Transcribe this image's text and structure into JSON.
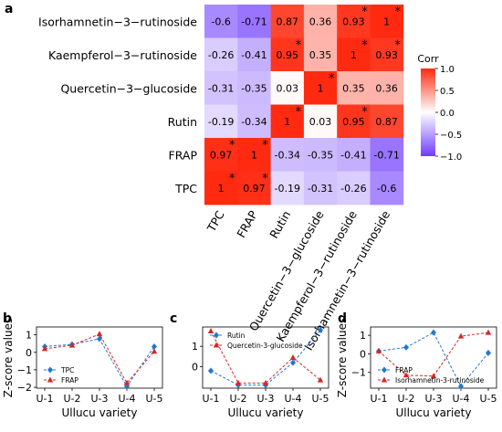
{
  "panel_letters": [
    "a",
    "b",
    "c",
    "d"
  ],
  "chart_data": [
    {
      "type": "heatmap",
      "panel": "a",
      "row_labels": [
        "Isorhamnetin−3−rutinoside",
        "Kaempferol−3−rutinoside",
        "Quercetin−3−glucoside",
        "Rutin",
        "FRAP",
        "TPC"
      ],
      "col_labels": [
        "TPC",
        "FRAP",
        "Rutin",
        "Quercetin−3−glucoside",
        "Kaempferol−3−rutinoside",
        "Isorhamnetin−3−rutinoside"
      ],
      "values": [
        [
          -0.6,
          -0.71,
          0.87,
          0.36,
          0.93,
          1
        ],
        [
          -0.26,
          -0.41,
          0.95,
          0.35,
          1,
          0.93
        ],
        [
          -0.31,
          -0.35,
          0.03,
          1,
          0.35,
          0.36
        ],
        [
          -0.19,
          -0.34,
          1,
          0.03,
          0.95,
          0.87
        ],
        [
          0.97,
          1,
          -0.34,
          -0.35,
          -0.41,
          -0.71
        ],
        [
          1,
          0.97,
          -0.19,
          -0.31,
          -0.26,
          -0.6
        ]
      ],
      "labels": [
        [
          "-0.6",
          "-0.71",
          "0.87",
          "0.36",
          "0.93",
          "1"
        ],
        [
          "-0.26",
          "-0.41",
          "0.95",
          "0.35",
          "1",
          "0.93"
        ],
        [
          "-0.31",
          "-0.35",
          "0.03",
          "1",
          "0.35",
          "0.36"
        ],
        [
          "-0.19",
          "-0.34",
          "1",
          "0.03",
          "0.95",
          "0.87"
        ],
        [
          "0.97",
          "1",
          "-0.34",
          "-0.35",
          "-0.41",
          "-0.71"
        ],
        [
          "1",
          "0.97",
          "-0.19",
          "-0.31",
          "-0.26",
          "-0.6"
        ]
      ],
      "significant": [
        [
          false,
          false,
          false,
          false,
          true,
          true
        ],
        [
          false,
          false,
          true,
          false,
          true,
          true
        ],
        [
          false,
          false,
          false,
          true,
          false,
          false
        ],
        [
          false,
          false,
          true,
          false,
          true,
          false
        ],
        [
          true,
          true,
          false,
          false,
          false,
          false
        ],
        [
          true,
          true,
          false,
          false,
          false,
          false
        ]
      ],
      "significance_mark": "*",
      "colorbar": {
        "title": "Corr",
        "range": [
          -1.0,
          1.0
        ],
        "ticks": [
          1.0,
          0.5,
          0.0,
          -0.5,
          -1.0
        ],
        "tick_labels": [
          "1.0",
          "0.5",
          "0.0",
          "−0.5",
          "−1.0"
        ],
        "colors": {
          "low": "#6e3bff",
          "mid": "#ffffff",
          "high": "#ff2a10"
        }
      }
    },
    {
      "type": "line",
      "panel": "b",
      "categories": [
        "U-1",
        "U-2",
        "U-3",
        "U-4",
        "U-5"
      ],
      "xlabel": "Ullucu variety",
      "ylabel": "Z-score values",
      "ylim": [
        -2.05,
        1.45
      ],
      "yticks": [
        -2,
        -1,
        0,
        1
      ],
      "ytick_labels": [
        "−2",
        "−1",
        "0",
        "1"
      ],
      "legend_position": "lower-left",
      "series": [
        {
          "name": "TPC",
          "values": [
            0.33,
            0.45,
            0.77,
            -1.95,
            0.33
          ],
          "color": "#1f77d4",
          "marker": "diamond"
        },
        {
          "name": "FRAP",
          "values": [
            0.2,
            0.4,
            1.05,
            -1.75,
            0.05
          ],
          "color": "#d62728",
          "marker": "triangle"
        }
      ]
    },
    {
      "type": "line",
      "panel": "c",
      "categories": [
        "U-1",
        "U-2",
        "U-3",
        "U-4",
        "U-5"
      ],
      "xlabel": "Ullucu variety",
      "ylabel": "",
      "ylim": [
        -1.05,
        1.95
      ],
      "yticks": [
        0,
        1
      ],
      "ytick_labels": [
        "0",
        "1"
      ],
      "legend_position": "top-left",
      "series": [
        {
          "name": "Rutin",
          "values": [
            -0.2,
            -0.9,
            -0.9,
            0.2,
            1.8
          ],
          "color": "#1f77d4",
          "marker": "diamond"
        },
        {
          "name": "Quercetin-3-glucoside",
          "values": [
            1.75,
            -0.8,
            -0.8,
            0.45,
            -0.65
          ],
          "color": "#d62728",
          "marker": "triangle"
        }
      ]
    },
    {
      "type": "line",
      "panel": "d",
      "categories": [
        "U-1",
        "U-2",
        "U-3",
        "U-4",
        "U-5"
      ],
      "xlabel": "Ullucu variety",
      "ylabel": "Z-score values",
      "ylim": [
        -1.85,
        1.45
      ],
      "yticks": [
        -1,
        0,
        1
      ],
      "ytick_labels": [
        "−1",
        "0",
        "1"
      ],
      "legend_position": "lower-left",
      "series": [
        {
          "name": "FRAP",
          "values": [
            0.15,
            0.35,
            1.15,
            -1.75,
            0.05
          ],
          "color": "#1f77d4",
          "marker": "diamond"
        },
        {
          "name": "Isorhamnetin-3-rutinoside",
          "values": [
            0.15,
            -1.15,
            -1.2,
            0.95,
            1.15
          ],
          "color": "#d62728",
          "marker": "triangle"
        }
      ]
    }
  ]
}
